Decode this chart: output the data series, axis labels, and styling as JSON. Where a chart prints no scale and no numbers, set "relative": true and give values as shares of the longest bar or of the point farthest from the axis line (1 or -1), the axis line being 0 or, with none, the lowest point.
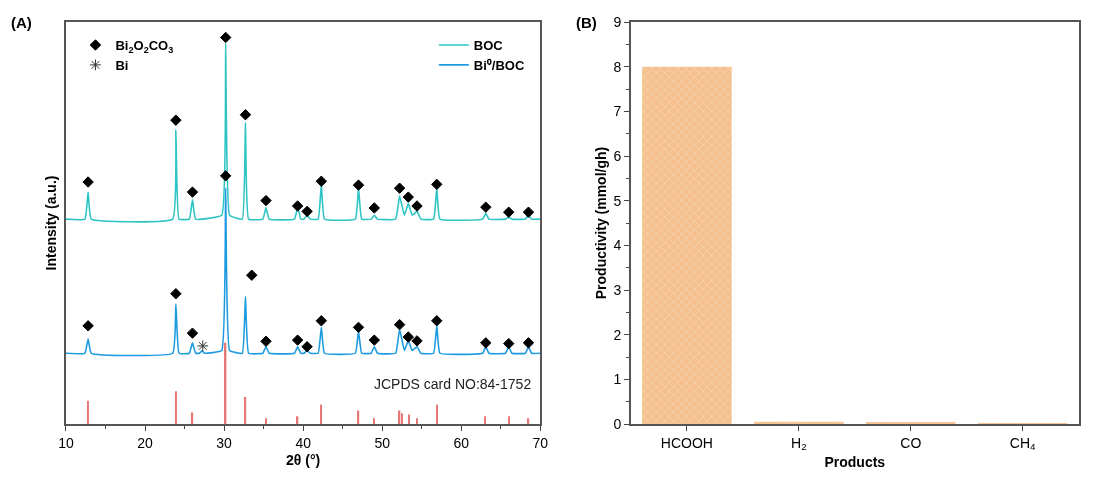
{
  "chart_data": [
    {
      "type": "line",
      "title": "(A)",
      "xlabel": "2θ (°)",
      "ylabel": "Intensity (a.u.)",
      "relative": true,
      "tick_labels": "x",
      "xlim": [
        10,
        70
      ],
      "xticks": [
        10,
        20,
        30,
        40,
        50,
        60,
        70
      ],
      "legend": "top right",
      "annotations": [
        "JCPDS card NO:84-1752"
      ],
      "series": [
        {
          "name": "BOC",
          "color": "#2ec4c4",
          "x": [
            10,
            12.4,
            12.8,
            13.2,
            23.5,
            23.9,
            24.3,
            25.6,
            26,
            26.4,
            29.7,
            30.2,
            30.7,
            32.3,
            32.7,
            33.1,
            34.9,
            35.3,
            35.7,
            38.9,
            39.3,
            39.7,
            40.1,
            40.5,
            40.9,
            41.9,
            42.3,
            42.7,
            46.6,
            47,
            47.4,
            48.6,
            49,
            49.4,
            51.7,
            52.2,
            52.8,
            53.3,
            53.8,
            54.4,
            54.9,
            56.5,
            56.9,
            57.3,
            62.7,
            63.1,
            63.5,
            65.6,
            66,
            66.4,
            68.1,
            68.5,
            68.9,
            70
          ],
          "values": [
            0.53,
            0.53,
            0.6,
            0.53,
            0.53,
            0.76,
            0.53,
            0.53,
            0.58,
            0.53,
            0.54,
            0.984,
            0.54,
            0.53,
            0.78,
            0.53,
            0.53,
            0.56,
            0.53,
            0.53,
            0.56,
            0.53,
            0.53,
            0.54,
            0.53,
            0.53,
            0.62,
            0.53,
            0.53,
            0.61,
            0.53,
            0.53,
            0.54,
            0.53,
            0.53,
            0.59,
            0.54,
            0.57,
            0.54,
            0.55,
            0.53,
            0.53,
            0.61,
            0.53,
            0.53,
            0.545,
            0.53,
            0.53,
            0.535,
            0.53,
            0.53,
            0.54,
            0.53,
            0.53
          ]
        },
        {
          "name": "Bi⁰/BOC",
          "color": "#1e9be0",
          "x": [
            10,
            12.4,
            12.8,
            13.2,
            23.5,
            23.9,
            24.3,
            25.6,
            26,
            26.4,
            26.9,
            27.2,
            27.5,
            29.7,
            30.2,
            30.7,
            32.3,
            32.7,
            33.1,
            34.9,
            35.3,
            35.7,
            38.9,
            39.3,
            39.7,
            40.1,
            40.5,
            40.9,
            41.9,
            42.3,
            42.7,
            46.6,
            47,
            47.4,
            48.6,
            49,
            49.4,
            51.7,
            52.2,
            52.8,
            53.3,
            53.8,
            54.4,
            54.9,
            56.5,
            56.9,
            57.3,
            62.7,
            63.1,
            63.5,
            65.6,
            66,
            66.4,
            68.1,
            68.5,
            68.9,
            70
          ],
          "values": [
            0.183,
            0.183,
            0.22,
            0.183,
            0.183,
            0.31,
            0.183,
            0.183,
            0.21,
            0.183,
            0.183,
            0.19,
            0.183,
            0.19,
            0.61,
            0.19,
            0.183,
            0.33,
            0.183,
            0.183,
            0.2,
            0.183,
            0.183,
            0.2,
            0.183,
            0.183,
            0.19,
            0.183,
            0.183,
            0.25,
            0.183,
            0.183,
            0.24,
            0.183,
            0.183,
            0.2,
            0.183,
            0.183,
            0.245,
            0.19,
            0.215,
            0.19,
            0.2,
            0.183,
            0.183,
            0.255,
            0.183,
            0.183,
            0.2,
            0.183,
            0.183,
            0.2,
            0.183,
            0.183,
            0.2,
            0.183,
            0.183
          ]
        },
        {
          "type": "bar",
          "color": "#e87878",
          "x": [
            12.8,
            23.9,
            26,
            30.2,
            32.7,
            35.3,
            39.3,
            42.3,
            47,
            49,
            52.2,
            52.5,
            53.4,
            54.4,
            56.9,
            63,
            66,
            68.5
          ],
          "values": [
            0.06,
            0.085,
            0.03,
            0.21,
            0.07,
            0.015,
            0.02,
            0.05,
            0.035,
            0.015,
            0.035,
            0.028,
            0.025,
            0.015,
            0.05,
            0.02,
            0.02,
            0.015
          ]
        },
        {
          "type": "scatter",
          "name": "Bi$_{2}$O$_{2}$CO$_{3}$",
          "marker": "diamond",
          "color": "#000000",
          "x": [
            12.8,
            23.9,
            26,
            30.2,
            32.7,
            35.3,
            39.3,
            40.5,
            42.3,
            47,
            49,
            52.2,
            53.3,
            54.4,
            56.9,
            63.1,
            66,
            68.5,
            12.8,
            23.9,
            26,
            30.2,
            33.5,
            35.3,
            39.3,
            40.5,
            42.3,
            47,
            49,
            52.2,
            53.3,
            54.4,
            56.9,
            63.1,
            66,
            68.5
          ],
          "values": [
            0.626,
            0.786,
            0.6,
            1,
            0.8,
            0.578,
            0.564,
            0.55,
            0.628,
            0.618,
            0.559,
            0.61,
            0.587,
            0.564,
            0.62,
            0.561,
            0.548,
            0.548,
            0.254,
            0.337,
            0.235,
            0.642,
            0.385,
            0.214,
            0.217,
            0.2,
            0.267,
            0.25,
            0.217,
            0.257,
            0.225,
            0.215,
            0.267,
            0.21,
            0.208,
            0.21
          ]
        },
        {
          "type": "scatter",
          "name": "Bi",
          "marker": "cross",
          "color": "#333333",
          "x": [
            27.3
          ],
          "values": [
            0.202
          ]
        }
      ]
    },
    {
      "type": "bar",
      "title": "(B)",
      "xlabel": "Products",
      "ylabel": "Productivity (mmol/gh)",
      "categories": [
        "HCOOH",
        "H$_{2}$",
        "CO",
        "CH$_{4}$"
      ],
      "values": [
        8,
        0.05,
        0.03,
        0.01
      ],
      "color": "#f5c08e",
      "ylim": [
        0,
        9
      ],
      "yticks": [
        0,
        1,
        2,
        3,
        4,
        5,
        6,
        7,
        8,
        9
      ]
    }
  ]
}
